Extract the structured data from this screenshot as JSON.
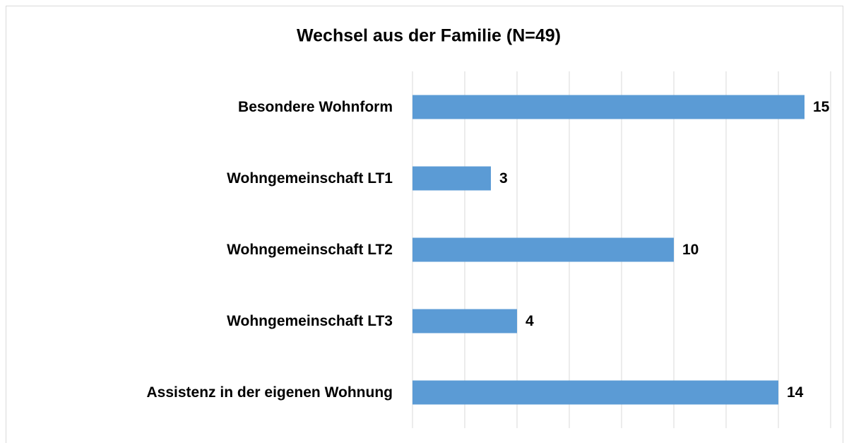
{
  "chart_data": {
    "type": "bar",
    "orientation": "horizontal",
    "title": "Wechsel aus der Familie (N=49)",
    "categories": [
      "Besondere Wohnform",
      "Wohngemeinschaft LT1",
      "Wohngemeinschaft LT2",
      "Wohngemeinschaft LT3",
      "Assistenz in der eigenen Wohnung"
    ],
    "values": [
      15,
      3,
      10,
      4,
      14
    ],
    "color": "#5b9bd5",
    "xlim": [
      0,
      16
    ],
    "xticks": [
      0,
      2,
      4,
      6,
      8,
      10,
      12,
      14,
      16
    ],
    "grid": true
  }
}
